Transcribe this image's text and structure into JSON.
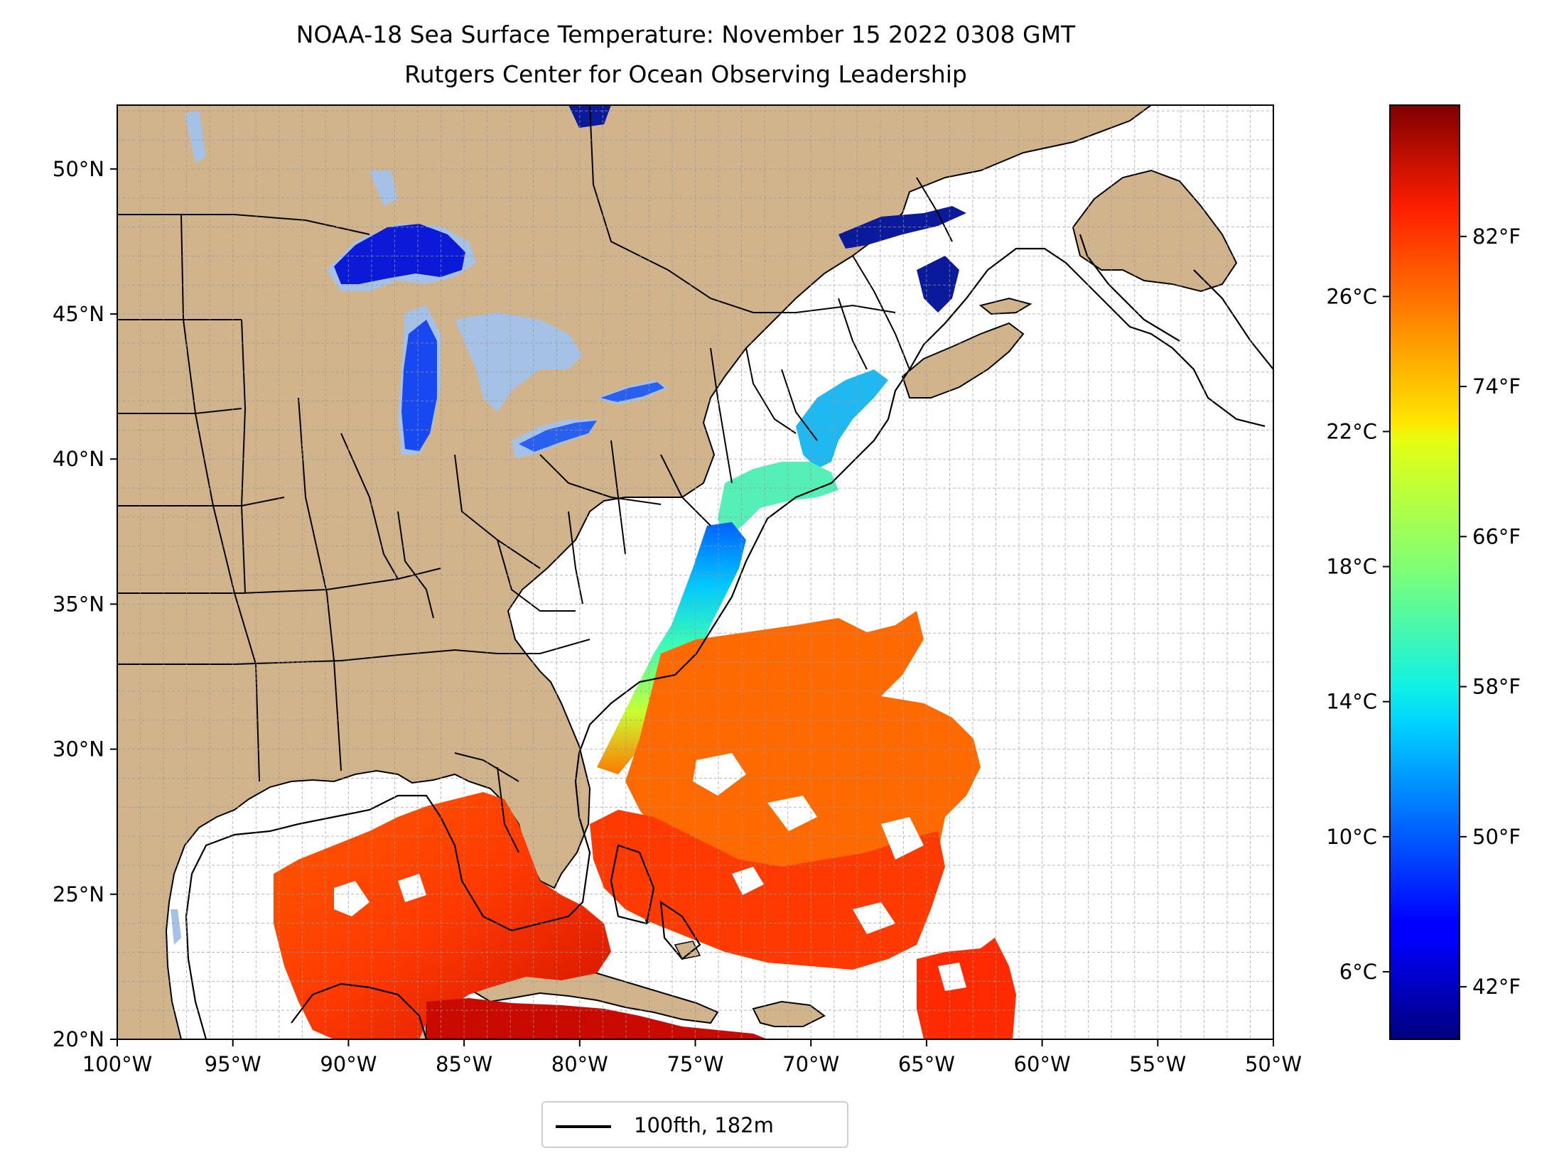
{
  "title": {
    "line1": "NOAA-18 Sea Surface Temperature: November 15 2022 0308 GMT",
    "line2": "Rutgers Center for Ocean Observing Leadership"
  },
  "map": {
    "lon_range": [
      -100,
      -50
    ],
    "lat_range": [
      20,
      52.2
    ],
    "lon_ticks": [
      {
        "value": -100,
        "label": "100°W"
      },
      {
        "value": -95,
        "label": "95°W"
      },
      {
        "value": -90,
        "label": "90°W"
      },
      {
        "value": -85,
        "label": "85°W"
      },
      {
        "value": -80,
        "label": "80°W"
      },
      {
        "value": -75,
        "label": "75°W"
      },
      {
        "value": -70,
        "label": "70°W"
      },
      {
        "value": -65,
        "label": "65°W"
      },
      {
        "value": -60,
        "label": "60°W"
      },
      {
        "value": -55,
        "label": "55°W"
      },
      {
        "value": -50,
        "label": "50°W"
      }
    ],
    "lat_ticks": [
      {
        "value": 20,
        "label": "20°N"
      },
      {
        "value": 25,
        "label": "25°N"
      },
      {
        "value": 30,
        "label": "30°N"
      },
      {
        "value": 35,
        "label": "35°N"
      },
      {
        "value": 40,
        "label": "40°N"
      },
      {
        "value": 45,
        "label": "45°N"
      },
      {
        "value": 50,
        "label": "50°N"
      }
    ],
    "gridlines": true,
    "land_color": "#d2b48c",
    "lake_color": "#a5c1e6",
    "ocean_color": "#ffffff"
  },
  "colorbar": {
    "colormap": "jet",
    "celsius_ticks": [
      {
        "value": 6,
        "label": "6°C"
      },
      {
        "value": 10,
        "label": "10°C"
      },
      {
        "value": 14,
        "label": "14°C"
      },
      {
        "value": 18,
        "label": "18°C"
      },
      {
        "value": 22,
        "label": "22°C"
      },
      {
        "value": 26,
        "label": "26°C"
      }
    ],
    "fahrenheit_ticks": [
      {
        "value": 42,
        "label": "42°F"
      },
      {
        "value": 50,
        "label": "50°F"
      },
      {
        "value": 58,
        "label": "58°F"
      },
      {
        "value": 66,
        "label": "66°F"
      },
      {
        "value": 74,
        "label": "74°F"
      },
      {
        "value": 82,
        "label": "82°F"
      }
    ]
  },
  "legend": {
    "label": "100fth, 182m"
  }
}
